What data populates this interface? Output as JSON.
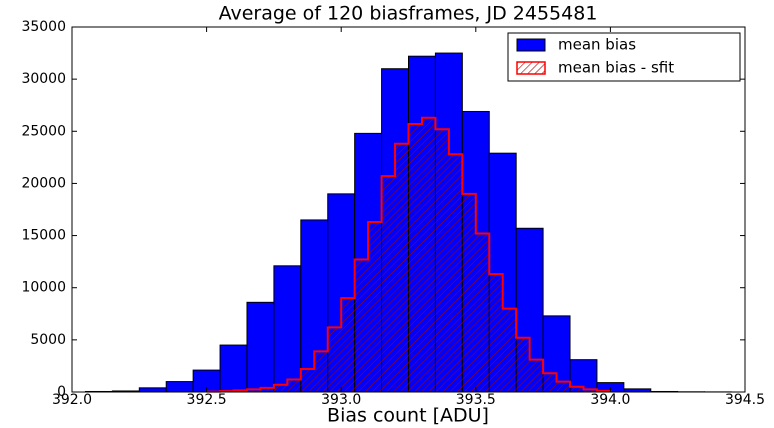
{
  "chart_data": {
    "type": "histogram",
    "title": "Average of 120 biasframes, JD 2455481",
    "xlabel": "Bias count [ADU]",
    "xlim": [
      392.0,
      394.5
    ],
    "xticks": [
      {
        "value": 392.0,
        "label": "392.0"
      },
      392.5,
      {
        "value": 393.0,
        "label": "393.0"
      },
      393.5,
      {
        "value": 394.0,
        "label": "394.0"
      },
      394.5
    ],
    "ylim": [
      0,
      35000
    ],
    "yticks": [
      0,
      5000,
      10000,
      15000,
      20000,
      25000,
      30000,
      35000
    ],
    "legend": "upper right",
    "series": [
      {
        "name": "mean bias",
        "color": "#0000ff",
        "style": "filled",
        "bins": [
          392.05,
          392.15,
          392.25,
          392.35,
          392.45,
          392.55,
          392.65,
          392.75,
          392.85,
          392.95,
          393.05,
          393.15,
          393.25,
          393.35,
          393.45,
          393.55,
          393.65,
          393.75,
          393.85,
          393.95,
          394.05,
          394.15,
          394.25,
          394.35,
          394.45
        ],
        "values": [
          50,
          100,
          400,
          1000,
          2100,
          4500,
          8600,
          12100,
          16500,
          19000,
          24800,
          31000,
          32200,
          32500,
          26900,
          22900,
          15700,
          7300,
          3100,
          900,
          300,
          50,
          20,
          10
        ]
      },
      {
        "name": "mean bias - sfit",
        "color": "#ff0000",
        "style": "hatched-step",
        "bins": [
          392.5,
          392.55,
          392.6,
          392.65,
          392.7,
          392.75,
          392.8,
          392.85,
          392.9,
          392.95,
          393.0,
          393.05,
          393.1,
          393.15,
          393.2,
          393.25,
          393.3,
          393.35,
          393.4,
          393.45,
          393.5,
          393.55,
          393.6,
          393.65,
          393.7,
          393.75,
          393.8,
          393.85,
          393.9,
          393.95,
          394.0
        ],
        "values": [
          40,
          80,
          150,
          250,
          400,
          700,
          1200,
          2200,
          3900,
          6200,
          9000,
          12700,
          16300,
          20700,
          23800,
          25700,
          26300,
          25200,
          22800,
          19000,
          15200,
          11300,
          8000,
          5200,
          3100,
          1800,
          1000,
          500,
          250,
          100
        ]
      }
    ]
  }
}
